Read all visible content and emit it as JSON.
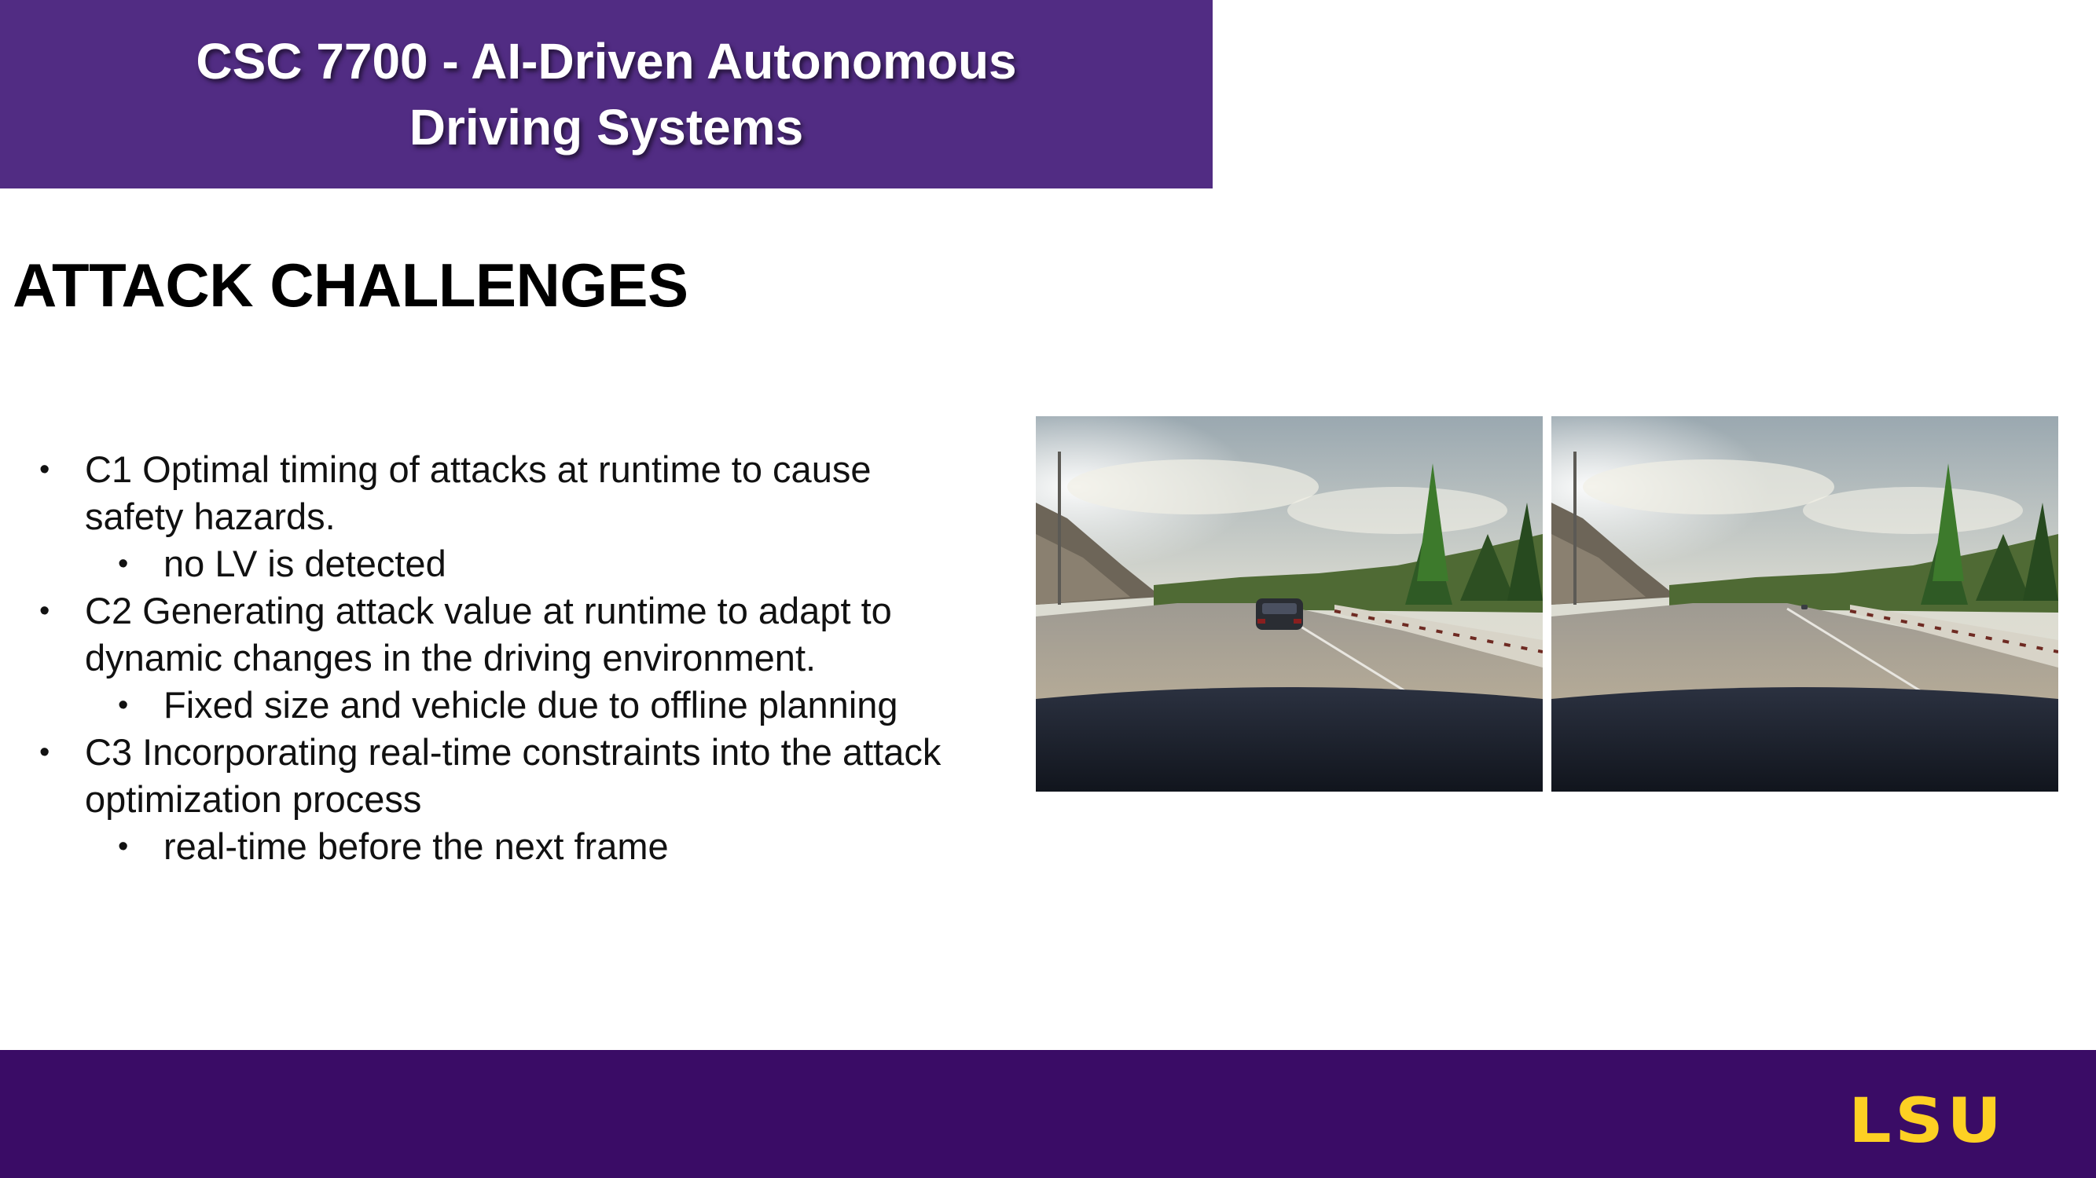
{
  "header": {
    "course_title_line1": "CSC 7700 - AI-Driven Autonomous",
    "course_title_line2": "Driving Systems"
  },
  "slide": {
    "title": "ATTACK CHALLENGES",
    "bullets": [
      {
        "text_line1": "C1 Optimal timing of attacks at runtime to cause",
        "text_line2": "safety hazards.",
        "sub": "no LV is detected"
      },
      {
        "text_line1": "C2 Generating attack value at runtime to adapt to",
        "text_line2": "dynamic changes in the driving environment.",
        "sub": "Fixed size and vehicle due to offline planning"
      },
      {
        "text_line1": "C3 Incorporating real-time constraints into the attack",
        "text_line2": "optimization process",
        "sub": "real-time before the next frame"
      }
    ],
    "bullet_glyph": "•"
  },
  "images": {
    "left": "driving-scene-with-lead-vehicle",
    "right": "driving-scene-without-lead-vehicle"
  },
  "footer": {
    "logo_text": "LSU"
  },
  "colors": {
    "header_purple": "#512c83",
    "footer_purple": "#3a0c66",
    "logo_gold": "#fdd023"
  }
}
